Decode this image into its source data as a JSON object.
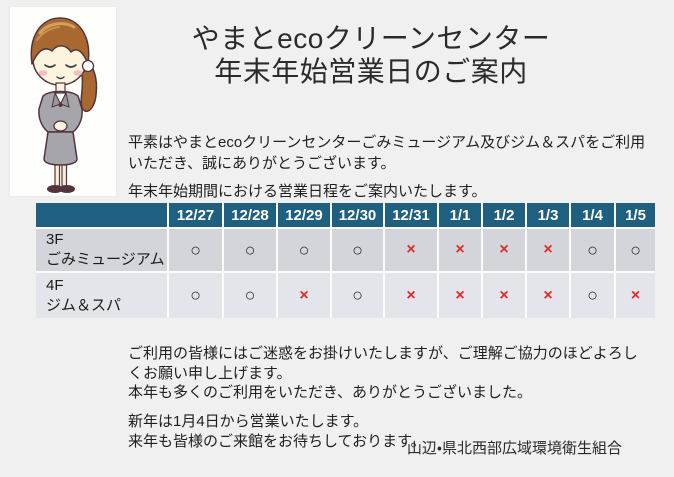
{
  "title": {
    "line1": "やまとecoクリーンセンター",
    "line2": "年末年始営業日のご案内"
  },
  "intro": {
    "p1_line1": "平素はやまとecoクリーンセンターごみミュージアム及びジム＆スパをご利用",
    "p1_line2": "いただき、誠にありがとうございます。",
    "p2": "年末年始期間における営業日程をご案内いたします。"
  },
  "schedule_table": {
    "date_columns": [
      "12/27",
      "12/28",
      "12/29",
      "12/30",
      "12/31",
      "1/1",
      "1/2",
      "1/3",
      "1/4",
      "1/5"
    ],
    "rows": [
      {
        "label_line1": "3F",
        "label_line2": "ごみミュージアム",
        "marks": [
          "○",
          "○",
          "○",
          "○",
          "×",
          "×",
          "×",
          "×",
          "○",
          "○"
        ]
      },
      {
        "label_line1": "4F",
        "label_line2": "ジム＆スパ",
        "marks": [
          "○",
          "○",
          "×",
          "○",
          "×",
          "×",
          "×",
          "×",
          "○",
          "×"
        ]
      }
    ],
    "open_mark": "○",
    "closed_mark": "×"
  },
  "closing": {
    "p1_line1": "ご利用の皆様にはご迷惑をお掛けいたしますが、ご理解ご協力のほどよろし",
    "p1_line2": "くお願い申し上げます。",
    "p2": "本年も多くのご利用をいただき、ありがとうございました。",
    "p3_line1": "新年は1月4日から営業いたします。",
    "p3_line2": "来年も皆様のご来館をお待ちしております。",
    "signature": "山辺・県北西部広域環境衛生組合"
  },
  "illustration": {
    "description": "bowing office woman"
  },
  "colors": {
    "page_bg": "#F0F0F1",
    "header_bg": "#1F5F7F",
    "row_a_bg": "#D3D5DB",
    "row_b_bg": "#E4E5EA",
    "closed_mark_color": "#DE2B2B"
  }
}
